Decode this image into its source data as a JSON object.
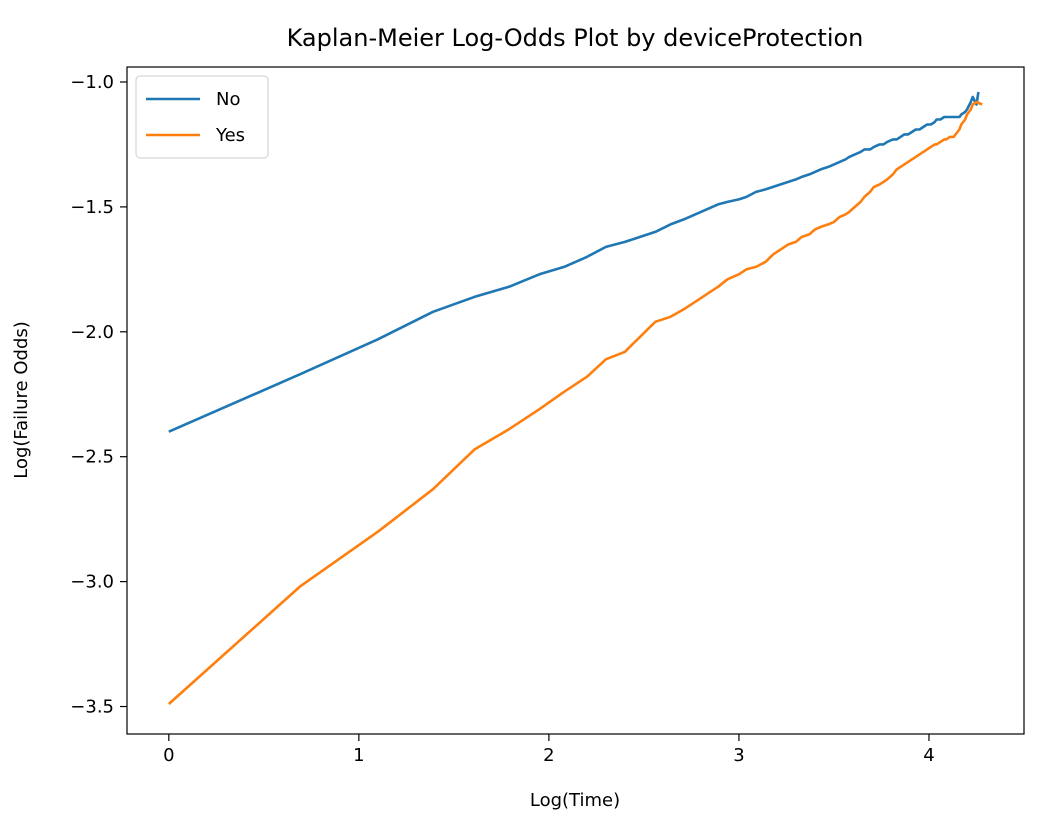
{
  "chart_data": {
    "type": "line",
    "title": "Kaplan-Meier Log-Odds Plot by deviceProtection",
    "xlabel": "Log(Time)",
    "ylabel": "Log(Failure Odds)",
    "xlim": [
      -0.22,
      4.5
    ],
    "ylim": [
      -3.61,
      -0.94
    ],
    "xticks": [
      0,
      1,
      2,
      3,
      4
    ],
    "yticks": [
      -1.0,
      -1.5,
      -2.0,
      -2.5,
      -3.0,
      -3.5
    ],
    "xtick_labels": [
      "0",
      "1",
      "2",
      "3",
      "4"
    ],
    "ytick_labels": [
      "−1.0",
      "−1.5",
      "−2.0",
      "−2.5",
      "−3.0",
      "−3.5"
    ],
    "grid": false,
    "legend_position": "top-left",
    "series": [
      {
        "name": "No",
        "color": "#1f77b4",
        "x": [
          0.0,
          0.69,
          1.1,
          1.39,
          1.61,
          1.79,
          1.95,
          2.08,
          2.2,
          2.3,
          2.4,
          2.48,
          2.56,
          2.64,
          2.71,
          2.77,
          2.83,
          2.89,
          2.94,
          3.0,
          3.04,
          3.09,
          3.14,
          3.18,
          3.22,
          3.26,
          3.3,
          3.33,
          3.37,
          3.4,
          3.43,
          3.47,
          3.5,
          3.53,
          3.56,
          3.58,
          3.61,
          3.64,
          3.66,
          3.69,
          3.71,
          3.74,
          3.76,
          3.78,
          3.81,
          3.83,
          3.85,
          3.87,
          3.89,
          3.91,
          3.93,
          3.95,
          3.97,
          3.99,
          4.01,
          4.03,
          4.04,
          4.06,
          4.08,
          4.09,
          4.11,
          4.13,
          4.14,
          4.16,
          4.17,
          4.19,
          4.2,
          4.22,
          4.23,
          4.25,
          4.26
        ],
        "y": [
          -2.4,
          -2.17,
          -2.03,
          -1.92,
          -1.86,
          -1.82,
          -1.77,
          -1.74,
          -1.7,
          -1.66,
          -1.64,
          -1.62,
          -1.6,
          -1.57,
          -1.55,
          -1.53,
          -1.51,
          -1.49,
          -1.48,
          -1.47,
          -1.46,
          -1.44,
          -1.43,
          -1.42,
          -1.41,
          -1.4,
          -1.39,
          -1.38,
          -1.37,
          -1.36,
          -1.35,
          -1.34,
          -1.33,
          -1.32,
          -1.31,
          -1.3,
          -1.29,
          -1.28,
          -1.27,
          -1.27,
          -1.26,
          -1.25,
          -1.25,
          -1.24,
          -1.23,
          -1.23,
          -1.22,
          -1.21,
          -1.21,
          -1.2,
          -1.19,
          -1.19,
          -1.18,
          -1.17,
          -1.17,
          -1.16,
          -1.15,
          -1.15,
          -1.14,
          -1.14,
          -1.14,
          -1.14,
          -1.14,
          -1.14,
          -1.13,
          -1.12,
          -1.11,
          -1.08,
          -1.06,
          -1.09,
          -1.04
        ]
      },
      {
        "name": "Yes",
        "color": "#ff7f0e",
        "x": [
          0.0,
          0.69,
          1.1,
          1.39,
          1.61,
          1.79,
          1.95,
          2.08,
          2.2,
          2.3,
          2.4,
          2.48,
          2.56,
          2.64,
          2.71,
          2.77,
          2.83,
          2.89,
          2.94,
          3.0,
          3.04,
          3.09,
          3.14,
          3.18,
          3.22,
          3.26,
          3.3,
          3.33,
          3.37,
          3.4,
          3.43,
          3.47,
          3.5,
          3.53,
          3.56,
          3.58,
          3.61,
          3.64,
          3.66,
          3.69,
          3.71,
          3.74,
          3.76,
          3.78,
          3.81,
          3.83,
          3.85,
          3.87,
          3.89,
          3.91,
          3.93,
          3.95,
          3.97,
          3.99,
          4.01,
          4.03,
          4.04,
          4.06,
          4.08,
          4.09,
          4.11,
          4.13,
          4.14,
          4.16,
          4.17,
          4.19,
          4.2,
          4.22,
          4.23,
          4.25,
          4.28
        ],
        "y": [
          -3.49,
          -3.02,
          -2.8,
          -2.63,
          -2.47,
          -2.39,
          -2.31,
          -2.24,
          -2.18,
          -2.11,
          -2.08,
          -2.02,
          -1.96,
          -1.94,
          -1.91,
          -1.88,
          -1.85,
          -1.82,
          -1.79,
          -1.77,
          -1.75,
          -1.74,
          -1.72,
          -1.69,
          -1.67,
          -1.65,
          -1.64,
          -1.62,
          -1.61,
          -1.59,
          -1.58,
          -1.57,
          -1.56,
          -1.54,
          -1.53,
          -1.52,
          -1.5,
          -1.48,
          -1.46,
          -1.44,
          -1.42,
          -1.41,
          -1.4,
          -1.39,
          -1.37,
          -1.35,
          -1.34,
          -1.33,
          -1.32,
          -1.31,
          -1.3,
          -1.29,
          -1.28,
          -1.27,
          -1.26,
          -1.25,
          -1.25,
          -1.24,
          -1.23,
          -1.23,
          -1.22,
          -1.22,
          -1.21,
          -1.19,
          -1.17,
          -1.15,
          -1.13,
          -1.11,
          -1.09,
          -1.08,
          -1.09
        ]
      }
    ]
  }
}
